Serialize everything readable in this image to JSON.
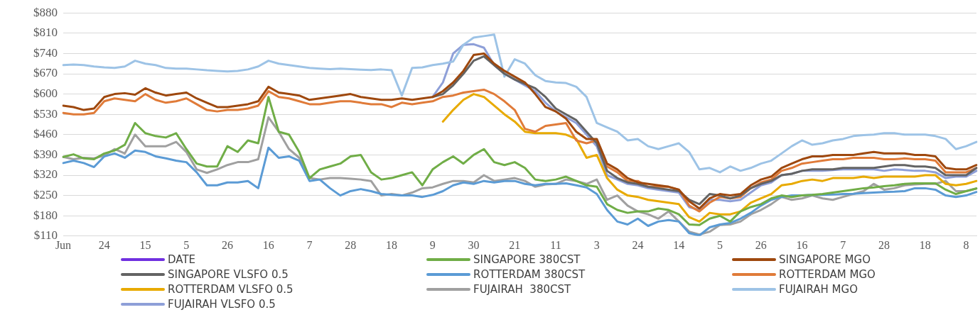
{
  "chart_data": {
    "type": "line",
    "categories": [
      "Jun",
      null,
      null,
      null,
      "24",
      null,
      null,
      null,
      "15",
      null,
      null,
      null,
      "5",
      null,
      null,
      null,
      "26",
      null,
      null,
      null,
      "16",
      null,
      null,
      null,
      "7",
      null,
      null,
      null,
      "28",
      null,
      null,
      null,
      "18",
      null,
      null,
      null,
      "9",
      null,
      null,
      null,
      "30",
      null,
      null,
      null,
      "21",
      null,
      null,
      null,
      "11",
      null,
      null,
      null,
      "3",
      null,
      null,
      null,
      "24",
      null,
      null,
      null,
      "14",
      null,
      null,
      null,
      "5",
      null,
      null,
      null,
      "26",
      null,
      null,
      null,
      "16",
      null,
      null,
      null,
      "7",
      null,
      null,
      null,
      "28",
      null,
      null,
      null,
      "18",
      null,
      null,
      null,
      "8",
      null
    ],
    "ylim": [
      110,
      880
    ],
    "yticks": [
      {
        "value": 110,
        "label": "$110"
      },
      {
        "value": 180,
        "label": "$180"
      },
      {
        "value": 250,
        "label": "$250"
      },
      {
        "value": 320,
        "label": "$320"
      },
      {
        "value": 390,
        "label": "$390"
      },
      {
        "value": 460,
        "label": "$460"
      },
      {
        "value": 530,
        "label": "$530"
      },
      {
        "value": 600,
        "label": "$600"
      },
      {
        "value": 670,
        "label": "$670"
      },
      {
        "value": 740,
        "label": "$740"
      },
      {
        "value": 810,
        "label": "$810"
      },
      {
        "value": 880,
        "label": "$880"
      }
    ],
    "grid": "y",
    "legend": "bottom",
    "marker": "none",
    "line_style": "solid",
    "series": [
      {
        "name": "DATE",
        "color": "#7030e0",
        "values": [
          null,
          null,
          null,
          null,
          null,
          null,
          null,
          null,
          null,
          null,
          null,
          null,
          null,
          null,
          null,
          null,
          null,
          null,
          null,
          null,
          null,
          null,
          null,
          null,
          null,
          null,
          null,
          null,
          null,
          null,
          null,
          null,
          null,
          null,
          null,
          null,
          null,
          null,
          null,
          null,
          null,
          null,
          null,
          null,
          null,
          null,
          null,
          null,
          null,
          null,
          null,
          null,
          null,
          null,
          null,
          null,
          null,
          null,
          null,
          null,
          null,
          null,
          null,
          null,
          null,
          null,
          null,
          null,
          null,
          null,
          null,
          null,
          null,
          null,
          null,
          null,
          null,
          null,
          null,
          null,
          null,
          null,
          null,
          null,
          null,
          null,
          null,
          null,
          null,
          null
        ]
      },
      {
        "name": "SINGAPORE 380CST",
        "color": "#70ad47",
        "values": [
          383,
          392,
          378,
          375,
          395,
          405,
          425,
          500,
          465,
          455,
          450,
          465,
          410,
          360,
          350,
          350,
          420,
          400,
          440,
          430,
          590,
          470,
          460,
          400,
          310,
          340,
          350,
          360,
          385,
          390,
          330,
          305,
          310,
          320,
          330,
          285,
          340,
          365,
          385,
          360,
          390,
          410,
          365,
          355,
          365,
          345,
          305,
          300,
          305,
          315,
          300,
          285,
          280,
          220,
          200,
          190,
          195,
          195,
          205,
          200,
          185,
          150,
          148,
          170,
          180,
          160,
          195,
          210,
          220,
          240,
          250,
          245,
          250,
          252,
          255,
          260,
          265,
          270,
          275,
          278,
          282,
          285,
          290,
          292,
          292,
          292,
          270,
          255,
          265,
          274
        ]
      },
      {
        "name": "SINGAPORE MGO",
        "color": "#9e480e",
        "values": [
          560,
          555,
          545,
          550,
          590,
          600,
          603,
          598,
          620,
          605,
          595,
          600,
          605,
          585,
          570,
          555,
          555,
          560,
          565,
          575,
          625,
          605,
          600,
          595,
          580,
          585,
          590,
          595,
          600,
          590,
          585,
          580,
          580,
          585,
          580,
          585,
          590,
          610,
          640,
          680,
          735,
          740,
          705,
          680,
          660,
          640,
          600,
          555,
          540,
          515,
          470,
          445,
          445,
          360,
          340,
          310,
          295,
          290,
          285,
          280,
          270,
          230,
          205,
          240,
          255,
          250,
          255,
          285,
          305,
          315,
          345,
          360,
          375,
          385,
          385,
          390,
          390,
          390,
          395,
          400,
          395,
          395,
          395,
          390,
          390,
          385,
          345,
          340,
          340,
          355
        ]
      },
      {
        "name": "SINGAPORE VLSFO 0.5",
        "color": "#636363",
        "values": [
          null,
          null,
          null,
          null,
          null,
          null,
          null,
          null,
          null,
          null,
          null,
          null,
          null,
          null,
          null,
          null,
          null,
          null,
          null,
          null,
          null,
          null,
          null,
          null,
          null,
          null,
          null,
          null,
          null,
          null,
          null,
          null,
          null,
          null,
          null,
          null,
          590,
          600,
          630,
          670,
          715,
          730,
          700,
          670,
          650,
          635,
          620,
          590,
          550,
          530,
          510,
          470,
          430,
          335,
          310,
          295,
          290,
          280,
          275,
          270,
          265,
          235,
          220,
          255,
          250,
          240,
          250,
          275,
          290,
          300,
          320,
          325,
          335,
          340,
          340,
          340,
          345,
          345,
          345,
          345,
          350,
          355,
          355,
          350,
          350,
          345,
          320,
          320,
          320,
          345
        ]
      },
      {
        "name": "ROTTERDAM 380CST",
        "color": "#5b9bd5",
        "values": [
          362,
          370,
          362,
          348,
          385,
          395,
          380,
          405,
          400,
          385,
          378,
          370,
          365,
          330,
          285,
          285,
          295,
          295,
          300,
          275,
          415,
          380,
          385,
          370,
          300,
          305,
          275,
          250,
          265,
          272,
          265,
          255,
          252,
          250,
          250,
          245,
          252,
          265,
          285,
          295,
          290,
          300,
          295,
          300,
          300,
          290,
          285,
          290,
          290,
          292,
          285,
          278,
          255,
          200,
          160,
          150,
          170,
          145,
          160,
          165,
          160,
          120,
          112,
          140,
          150,
          155,
          170,
          190,
          215,
          235,
          245,
          250,
          250,
          252,
          252,
          253,
          255,
          256,
          258,
          260,
          262,
          263,
          265,
          275,
          275,
          270,
          250,
          245,
          250,
          262
        ]
      },
      {
        "name": "ROTTERDAM MGO",
        "color": "#e07b39",
        "values": [
          535,
          530,
          530,
          535,
          575,
          585,
          580,
          575,
          600,
          580,
          570,
          575,
          585,
          565,
          545,
          540,
          545,
          545,
          550,
          560,
          610,
          590,
          585,
          575,
          565,
          565,
          570,
          575,
          575,
          570,
          565,
          565,
          555,
          570,
          565,
          570,
          575,
          590,
          595,
          605,
          610,
          615,
          600,
          575,
          545,
          480,
          470,
          490,
          495,
          500,
          440,
          430,
          440,
          350,
          330,
          300,
          300,
          280,
          280,
          280,
          270,
          215,
          195,
          225,
          245,
          240,
          245,
          275,
          295,
          305,
          335,
          345,
          360,
          365,
          370,
          375,
          375,
          380,
          380,
          380,
          375,
          375,
          378,
          375,
          375,
          370,
          330,
          330,
          330,
          345
        ]
      },
      {
        "name": "ROTTERDAM VLSFO 0.5",
        "color": "#e8aa00",
        "values": [
          null,
          null,
          null,
          null,
          null,
          null,
          null,
          null,
          null,
          null,
          null,
          null,
          null,
          null,
          null,
          null,
          null,
          null,
          null,
          null,
          null,
          null,
          null,
          null,
          null,
          null,
          null,
          null,
          null,
          null,
          null,
          null,
          null,
          null,
          null,
          null,
          null,
          505,
          545,
          580,
          600,
          590,
          560,
          530,
          505,
          470,
          465,
          465,
          465,
          460,
          445,
          380,
          390,
          310,
          270,
          250,
          245,
          235,
          230,
          225,
          220,
          175,
          160,
          190,
          185,
          185,
          195,
          225,
          240,
          255,
          285,
          290,
          300,
          305,
          300,
          310,
          310,
          310,
          315,
          310,
          315,
          315,
          315,
          315,
          320,
          320,
          290,
          285,
          290,
          300
        ]
      },
      {
        "name": "FUJAIRAH  380CST",
        "color": "#a0a0a0",
        "values": [
          383,
          375,
          380,
          378,
          388,
          410,
          395,
          460,
          420,
          420,
          420,
          435,
          400,
          340,
          328,
          340,
          355,
          365,
          365,
          375,
          520,
          470,
          410,
          380,
          310,
          305,
          310,
          310,
          308,
          305,
          300,
          250,
          255,
          250,
          260,
          275,
          278,
          290,
          300,
          300,
          295,
          320,
          300,
          305,
          310,
          300,
          280,
          288,
          290,
          305,
          300,
          290,
          305,
          235,
          250,
          215,
          195,
          185,
          170,
          195,
          160,
          125,
          115,
          125,
          148,
          150,
          160,
          185,
          200,
          220,
          245,
          235,
          240,
          250,
          240,
          235,
          245,
          255,
          265,
          290,
          270,
          275,
          285,
          288,
          290,
          290,
          300,
          265,
          265,
          274
        ]
      },
      {
        "name": "FUJAIRAH MGO",
        "color": "#9dc3e6",
        "values": [
          700,
          702,
          700,
          695,
          692,
          690,
          695,
          715,
          705,
          700,
          690,
          688,
          688,
          685,
          682,
          680,
          678,
          680,
          685,
          695,
          715,
          705,
          700,
          695,
          690,
          688,
          686,
          688,
          686,
          684,
          683,
          685,
          682,
          595,
          690,
          692,
          700,
          705,
          712,
          770,
          795,
          800,
          805,
          660,
          720,
          705,
          665,
          645,
          640,
          638,
          625,
          590,
          500,
          485,
          470,
          440,
          445,
          420,
          410,
          420,
          430,
          400,
          340,
          345,
          330,
          350,
          335,
          345,
          360,
          370,
          395,
          420,
          440,
          425,
          430,
          440,
          445,
          455,
          458,
          460,
          465,
          465,
          460,
          460,
          460,
          455,
          445,
          410,
          420,
          435
        ]
      },
      {
        "name": "FUJAIRAH VLSFO 0.5",
        "color": "#8e9fd8",
        "values": [
          null,
          null,
          null,
          null,
          null,
          null,
          null,
          null,
          null,
          null,
          null,
          null,
          null,
          null,
          null,
          null,
          null,
          null,
          null,
          null,
          null,
          null,
          null,
          null,
          null,
          null,
          null,
          null,
          null,
          null,
          null,
          null,
          null,
          null,
          null,
          null,
          590,
          640,
          740,
          770,
          772,
          760,
          700,
          670,
          650,
          630,
          610,
          570,
          540,
          520,
          500,
          460,
          420,
          320,
          305,
          290,
          285,
          275,
          270,
          265,
          260,
          210,
          200,
          235,
          235,
          230,
          235,
          260,
          285,
          295,
          320,
          325,
          335,
          335,
          335,
          338,
          340,
          340,
          340,
          340,
          335,
          340,
          338,
          335,
          335,
          330,
          310,
          315,
          315,
          335
        ]
      }
    ]
  }
}
